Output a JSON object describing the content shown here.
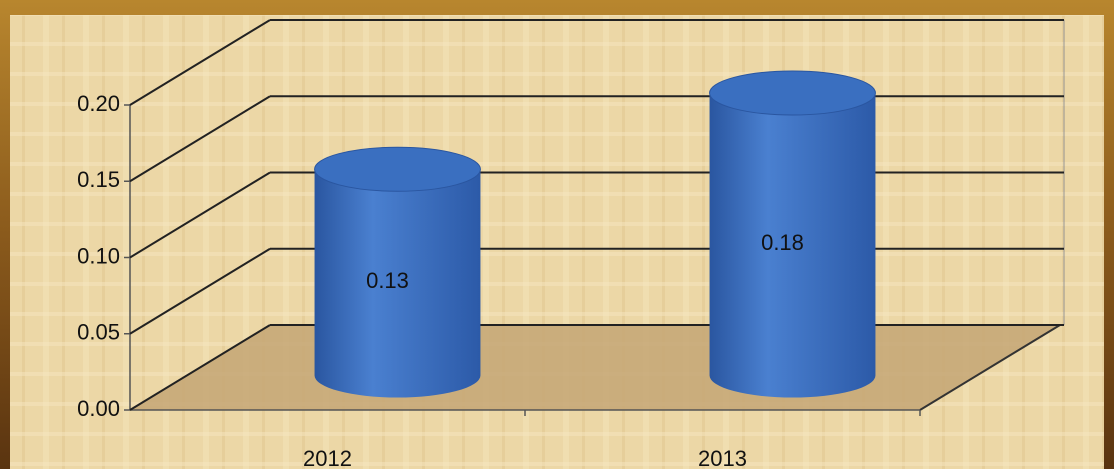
{
  "chart_data": {
    "type": "bar3d",
    "categories": [
      "2012",
      "2013"
    ],
    "values": [
      0.13,
      0.18
    ],
    "color": "#3a6fc0",
    "ylim": [
      0,
      0.2
    ],
    "yticks": [
      {
        "value": 0,
        "label": "0.00"
      },
      0.05,
      {
        "value": 0.1,
        "label": "0.10"
      },
      0.15,
      {
        "value": 0.2,
        "label": "0.20"
      }
    ],
    "grid": true
  }
}
